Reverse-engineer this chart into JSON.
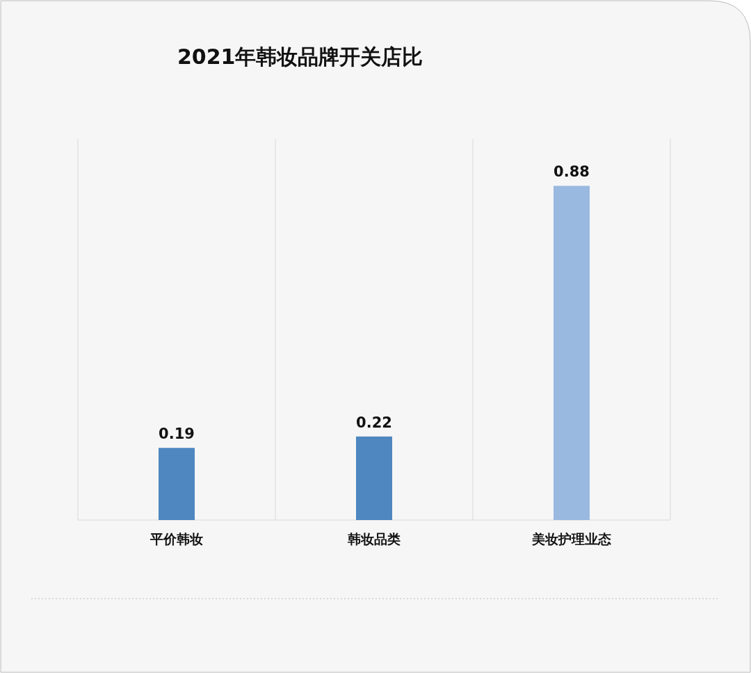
{
  "chart_data": {
    "type": "bar",
    "title": "2021年韩妆品牌开关店比",
    "categories": [
      "平价韩妆",
      "韩妆品类",
      "美妆护理业态"
    ],
    "values": [
      0.19,
      0.22,
      0.88
    ],
    "colors": [
      "#4f87c0",
      "#4f87c0",
      "#9ab9e0"
    ],
    "data_labels": true,
    "grid": "x"
  }
}
